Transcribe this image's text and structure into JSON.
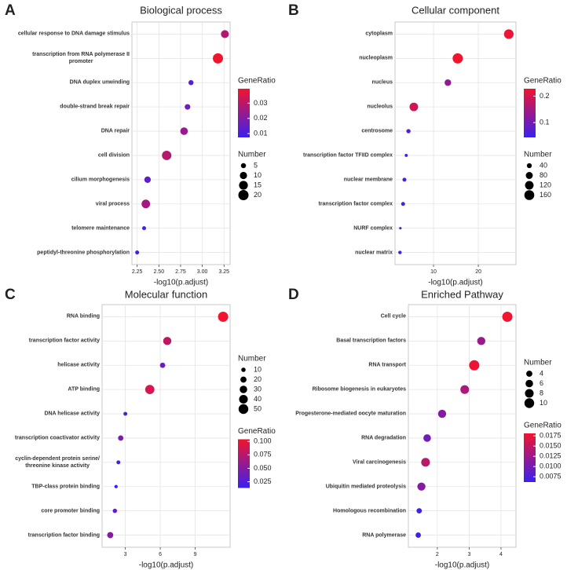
{
  "chart_data": [
    {
      "type": "dot",
      "panel_label": "A",
      "title": "Biological process",
      "x_label": "-log10(p.adjust)",
      "categories": [
        "cellular response to DNA damage stimulus",
        "transcription from RNA polymerase II\npromoter",
        "DNA duplex unwinding",
        "double-strand break repair",
        "DNA repair",
        "cell division",
        "cilium morphogenesis",
        "viral process",
        "telomere maintenance",
        "peptidyl-threonine phosphorylation"
      ],
      "values": [
        3.26,
        3.18,
        2.87,
        2.83,
        2.79,
        2.59,
        2.37,
        2.35,
        2.33,
        2.25
      ],
      "gene_ratio": [
        0.028,
        0.0395,
        0.012,
        0.016,
        0.024,
        0.029,
        0.014,
        0.026,
        0.009,
        0.0075
      ],
      "count": [
        12,
        20,
        5,
        6,
        11,
        17,
        8,
        14,
        3,
        3
      ],
      "xlim": [
        2.19,
        3.32
      ],
      "xticks": [
        2.25,
        {
          "value": 2.5,
          "label": "2.50"
        },
        2.75,
        {
          "value": 3.0,
          "label": "3.00"
        },
        3.25
      ],
      "grid": true,
      "colors": [
        "#3a20f2",
        "#f2142e"
      ],
      "legends": [
        {
          "kind": "color",
          "title": "GeneRatio",
          "lim": [
            0.0075,
            0.0395
          ],
          "ticks": [
            0.01,
            0.02,
            0.03
          ]
        },
        {
          "kind": "size",
          "title": "Number",
          "ticks": [
            5,
            10,
            15,
            20
          ]
        }
      ]
    },
    {
      "type": "dot",
      "panel_label": "B",
      "title": "Cellular component",
      "x_label": "-log10(p.adjust)",
      "categories": [
        "cytoplasm",
        "nucleoplasm",
        "nucleus",
        "nucleolus",
        "centrosome",
        "transcription factor TFIID complex",
        "nuclear membrane",
        "transcription factor complex",
        "NURF complex",
        "nuclear matrix"
      ],
      "values": [
        26.8,
        15.4,
        13.2,
        5.6,
        4.4,
        3.9,
        3.5,
        3.2,
        2.6,
        2.5
      ],
      "gene_ratio": [
        0.22,
        0.228,
        0.13,
        0.19,
        0.07,
        0.05,
        0.06,
        0.06,
        0.045,
        0.05
      ],
      "count": [
        150,
        170,
        70,
        120,
        30,
        15,
        25,
        25,
        10,
        20
      ],
      "xlim": [
        1.4,
        28.4
      ],
      "xticks": [
        10,
        20
      ],
      "grid": true,
      "colors": [
        "#3a20f2",
        "#f2142e"
      ],
      "legends": [
        {
          "kind": "color",
          "title": "GeneRatio",
          "lim": [
            0.044,
            0.228
          ],
          "ticks": [
            0.1,
            0.2
          ]
        },
        {
          "kind": "size",
          "title": "Number",
          "ticks": [
            40,
            80,
            120,
            160
          ]
        }
      ]
    },
    {
      "type": "dot",
      "panel_label": "C",
      "title": "Molecular function",
      "x_label": "-log10(p.adjust)",
      "categories": [
        "RNA binding",
        "transcription factor activity",
        "helicase activity",
        "ATP binding",
        "DNA helicase activity",
        "transcription coactivator activity",
        "cyclin-dependent protein serine/\nthreonine kinase activity",
        "TBP-class protein binding",
        "core promoter binding",
        "transcription factor binding"
      ],
      "values": [
        11.4,
        6.6,
        6.2,
        5.1,
        3.0,
        2.6,
        2.4,
        2.2,
        2.1,
        1.7
      ],
      "gene_ratio": [
        0.104,
        0.08,
        0.04,
        0.09,
        0.02,
        0.045,
        0.02,
        0.015,
        0.03,
        0.05
      ],
      "count": [
        55,
        35,
        15,
        45,
        8,
        15,
        8,
        6,
        10,
        20
      ],
      "xlim": [
        1.0,
        12.0
      ],
      "xticks": [
        3,
        6,
        9
      ],
      "grid": true,
      "colors": [
        "#3a20f2",
        "#f2142e"
      ],
      "legends": [
        {
          "kind": "size",
          "title": "Number",
          "ticks": [
            10,
            20,
            30,
            40,
            50
          ]
        },
        {
          "kind": "color",
          "title": "GeneRatio",
          "lim": [
            0.0135,
            0.104
          ],
          "ticks": [
            0.025,
            {
              "value": 0.05,
              "label": "0.050"
            },
            0.075,
            {
              "value": 0.1,
              "label": "0.100"
            }
          ]
        }
      ]
    },
    {
      "type": "dot",
      "panel_label": "D",
      "title": "Enriched Pathway",
      "x_label": "-log10(p.adjust)",
      "categories": [
        "Cell cycle",
        "Basal transcription factors",
        "RNA transport",
        "Ribosome biogenesis in eukaryotes",
        "Progesterone-mediated oocyte maturation",
        "RNA degradation",
        "Viral carcinogenesis",
        "Ubiquitin mediated proteolysis",
        "Homologous recombination",
        "RNA polymerase"
      ],
      "values": [
        4.2,
        3.38,
        3.16,
        2.86,
        2.15,
        1.68,
        1.63,
        1.5,
        1.43,
        1.4
      ],
      "gene_ratio": [
        0.0181,
        0.0125,
        0.0178,
        0.0135,
        0.011,
        0.01,
        0.0145,
        0.011,
        0.0065,
        0.0062
      ],
      "count": [
        11,
        7,
        11,
        8,
        7,
        6,
        8,
        7,
        3,
        3
      ],
      "xlim": [
        1.09,
        4.47
      ],
      "xticks": [
        2,
        3,
        4
      ],
      "grid": true,
      "colors": [
        "#3a20f2",
        "#f2142e"
      ],
      "legends": [
        {
          "kind": "size",
          "title": "Number",
          "ticks": [
            4,
            6,
            8,
            10
          ]
        },
        {
          "kind": "color",
          "title": "GeneRatio",
          "lim": [
            0.0062,
            0.0181
          ],
          "ticks": [
            0.0075,
            {
              "value": 0.01,
              "label": "0.0100"
            },
            0.0125,
            {
              "value": 0.015,
              "label": "0.0150"
            },
            0.0175
          ]
        }
      ]
    }
  ]
}
